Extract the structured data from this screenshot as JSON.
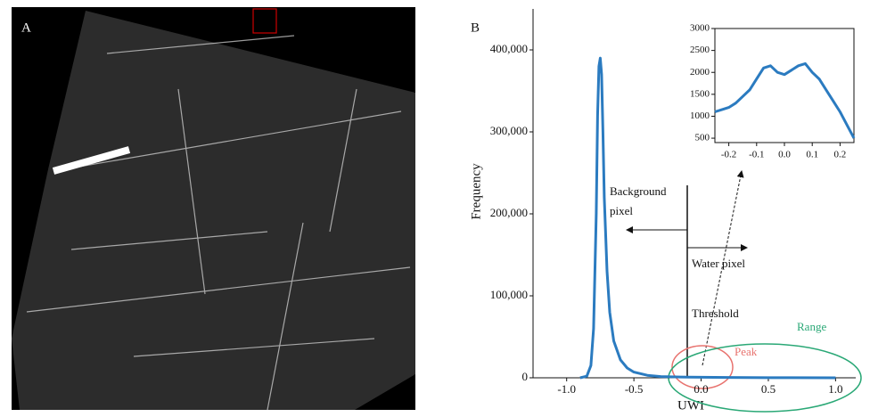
{
  "panel_a": {
    "label": "A"
  },
  "chart_data": [
    {
      "type": "line",
      "panel_label": "B",
      "x_label": "UWI",
      "y_label": "Frequency",
      "annotations": [
        "Background pixel",
        "Water pixel",
        "Threshold",
        "Peak",
        "Range"
      ],
      "x": [
        -0.9,
        -0.85,
        -0.82,
        -0.8,
        -0.78,
        -0.77,
        -0.76,
        -0.75,
        -0.74,
        -0.73,
        -0.72,
        -0.7,
        -0.68,
        -0.65,
        -0.6,
        -0.55,
        -0.5,
        -0.4,
        -0.3,
        -0.1,
        0.2,
        0.5,
        1.0
      ],
      "series": [
        {
          "color": "#2b7bc0",
          "values": [
            0,
            2000,
            15000,
            60000,
            200000,
            320000,
            380000,
            390000,
            370000,
            300000,
            220000,
            130000,
            80000,
            45000,
            22000,
            12000,
            7000,
            3000,
            1500,
            800,
            400,
            100,
            0
          ]
        }
      ],
      "xlim": [
        -1.25,
        1.15
      ],
      "ylim": [
        0,
        450000
      ],
      "xticks": [
        {
          "value": -1,
          "label": "-1.0"
        },
        -0.5,
        {
          "value": 0,
          "label": "0.0"
        },
        0.5,
        {
          "value": 1,
          "label": "1.0"
        }
      ],
      "yticks": [
        0,
        {
          "value": 100000,
          "label": "100,000"
        },
        {
          "value": 200000,
          "label": "200,000"
        },
        {
          "value": 300000,
          "label": "300,000"
        },
        {
          "value": 400000,
          "label": "400,000"
        }
      ]
    },
    {
      "type": "line",
      "x": [
        -0.25,
        -0.225,
        -0.2,
        -0.175,
        -0.15,
        -0.125,
        -0.1,
        -0.075,
        -0.05,
        -0.025,
        0,
        0.025,
        0.05,
        0.075,
        0.1,
        0.125,
        0.15,
        0.175,
        0.2,
        0.225,
        0.25
      ],
      "series": [
        {
          "color": "#2b7bc0",
          "values": [
            1100,
            1150,
            1200,
            1300,
            1450,
            1600,
            1850,
            2100,
            2150,
            2000,
            1950,
            2050,
            2150,
            2200,
            2000,
            1850,
            1600,
            1350,
            1100,
            800,
            500
          ]
        }
      ],
      "xlim": [
        -0.25,
        0.25
      ],
      "ylim": [
        400,
        3000
      ],
      "xticks": [
        -0.2,
        -0.1,
        {
          "value": 0,
          "label": "0.0"
        },
        0.1,
        0.2
      ],
      "yticks": [
        500,
        1000,
        1500,
        2000,
        2500,
        3000
      ],
      "frame": true
    }
  ]
}
